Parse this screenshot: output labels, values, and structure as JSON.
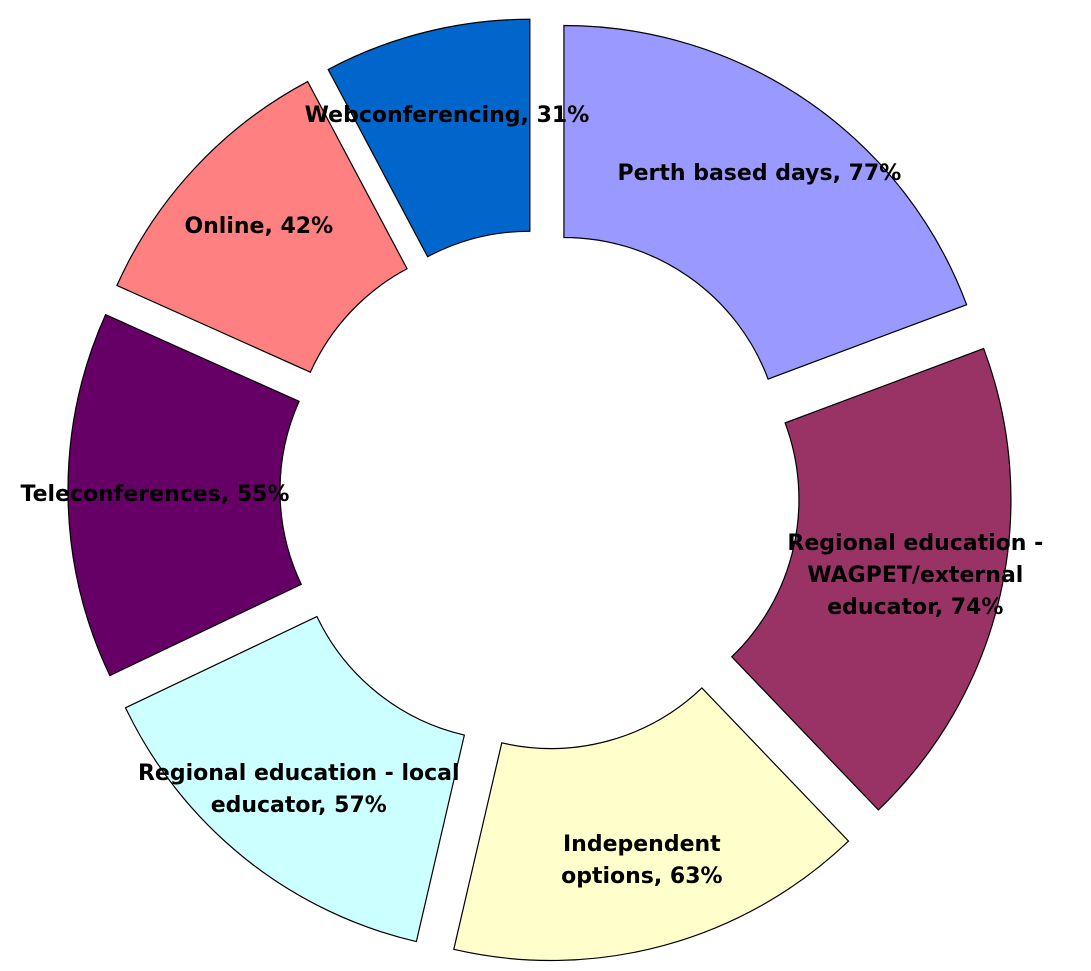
{
  "chart_data": {
    "type": "donut",
    "value_labels": [
      "Perth based days, 77%",
      "Regional education - WAGPET/external educator, 74%",
      "Independent options, 63%",
      "Regional education - local educator, 57%",
      "Teleconferences, 55%",
      "Online, 42%",
      "Webconferencing, 31%"
    ],
    "values": [
      77,
      74,
      63,
      57,
      55,
      42,
      31
    ],
    "colors": [
      "#9999ff",
      "#993366",
      "#ffffcc",
      "#ccffff",
      "#660066",
      "#ff8080",
      "#0066cc"
    ],
    "exploded": true
  }
}
